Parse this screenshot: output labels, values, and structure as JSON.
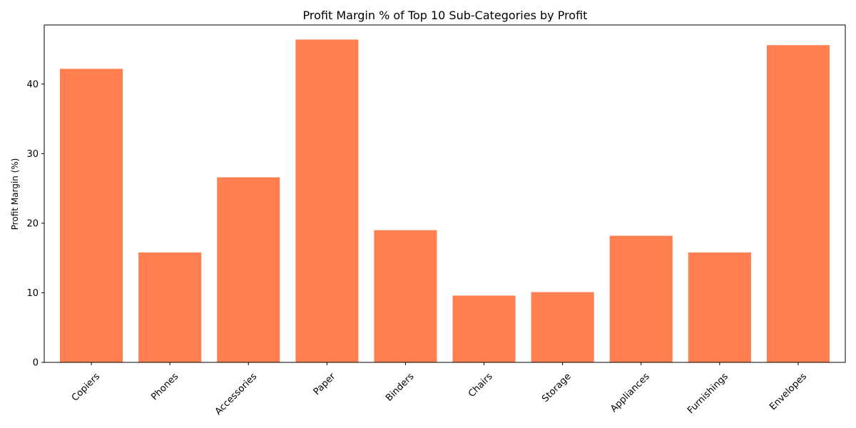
{
  "chart_data": {
    "type": "bar",
    "title": "Profit Margin % of Top 10 Sub-Categories by Profit",
    "xlabel": "",
    "ylabel": "Profit Margin (%)",
    "categories": [
      "Copiers",
      "Phones",
      "Accessories",
      "Paper",
      "Binders",
      "Chairs",
      "Storage",
      "Appliances",
      "Furnishings",
      "Envelopes"
    ],
    "values": [
      42.2,
      15.8,
      26.6,
      46.4,
      19.0,
      9.6,
      10.1,
      18.2,
      15.8,
      45.6
    ],
    "ylim": [
      0,
      48.5
    ],
    "yticks": [
      0,
      10,
      20,
      30,
      40
    ],
    "bar_color": "#ff7f50",
    "grid": false,
    "legend": "none"
  }
}
